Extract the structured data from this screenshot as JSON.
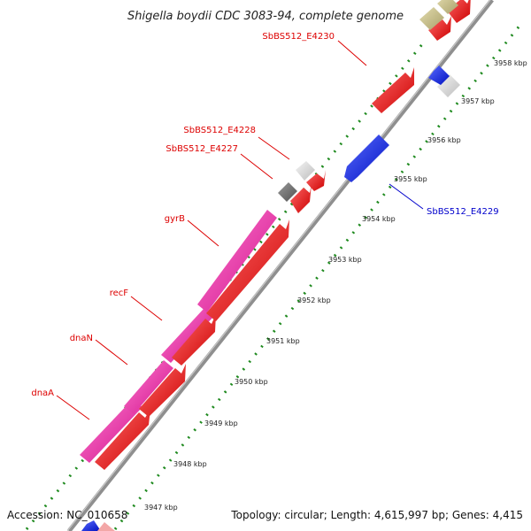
{
  "title": "Shigella boydii CDC 3083-94, complete genome",
  "footer": {
    "accession": "Accession: NC_010658",
    "topology": "Topology: circular; Length: 4,615,997 bp; Genes: 4,415"
  },
  "colors": {
    "backbone": "#8f8f8f",
    "tick": "#1f8a1f",
    "label_red": "#dd0000",
    "label_blue": "#0000cc",
    "gene_pink": "#e8229a",
    "gene_red": "#ee0000",
    "gene_blue": "#0b1fd6",
    "gene_gray": "#d8d8d8",
    "gene_darkgray": "#6e6e6e",
    "gene_olive": "#c8bf86"
  },
  "ticks": [
    {
      "label": "3947 kbp"
    },
    {
      "label": "3948 kbp"
    },
    {
      "label": "3949 kbp"
    },
    {
      "label": "3950 kbp"
    },
    {
      "label": "3951 kbp"
    },
    {
      "label": "3952 kbp"
    },
    {
      "label": "3953 kbp"
    },
    {
      "label": "3954 kbp"
    },
    {
      "label": "3955 kbp"
    },
    {
      "label": "3956 kbp"
    },
    {
      "label": "3957 kbp"
    },
    {
      "label": "3958 kbp"
    }
  ],
  "gene_labels": [
    {
      "text": "SbBS512_E4230",
      "color": "red"
    },
    {
      "text": "SbBS512_E4228",
      "color": "red"
    },
    {
      "text": "SbBS512_E4227",
      "color": "red"
    },
    {
      "text": "gyrB",
      "color": "red"
    },
    {
      "text": "recF",
      "color": "red"
    },
    {
      "text": "dnaN",
      "color": "red"
    },
    {
      "text": "dnaA",
      "color": "red"
    },
    {
      "text": "SbBS512_E4229",
      "color": "blue"
    }
  ]
}
